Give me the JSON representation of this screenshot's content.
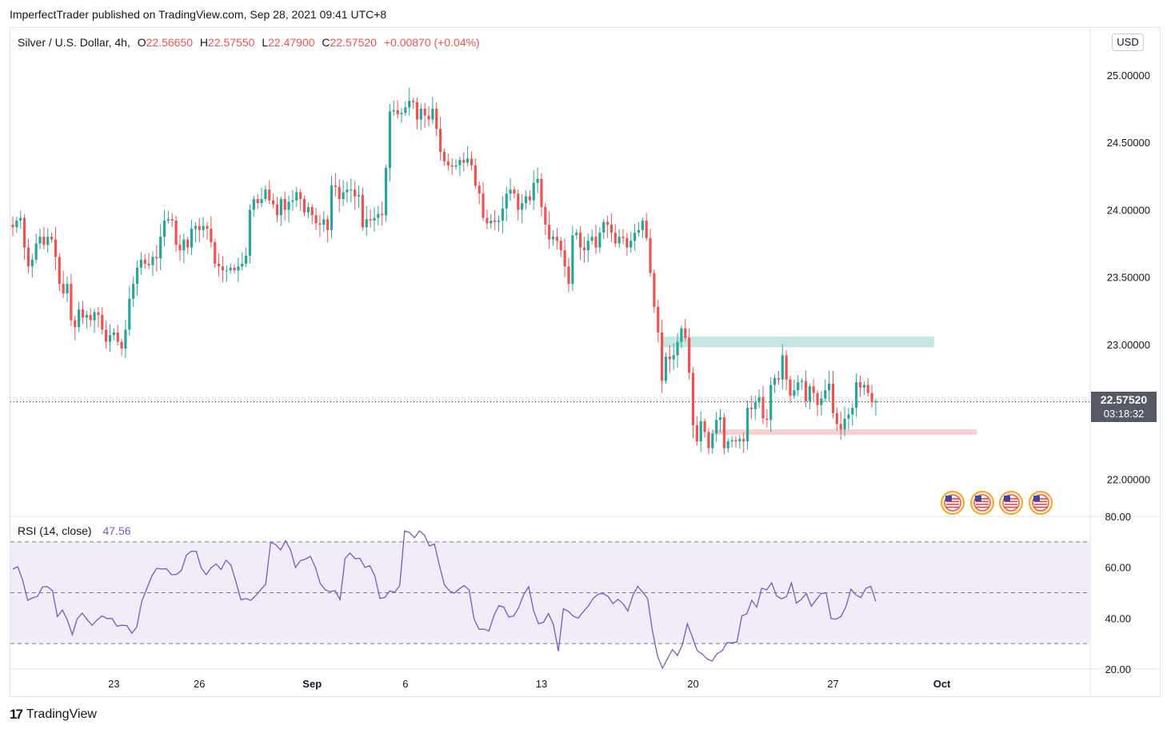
{
  "header": {
    "publish_line": "ImperfectTrader published on TradingView.com, Sep 28, 2021 09:41 UTC+8"
  },
  "legend": {
    "symbol": "Silver / U.S. Dollar, 4h,",
    "o_label": "O",
    "o_value": "22.56650",
    "h_label": "H",
    "h_value": "22.57550",
    "l_label": "L",
    "l_value": "22.47900",
    "c_label": "C",
    "c_value": "22.57520",
    "change": "+0.00870 (+0.04%)"
  },
  "price_axis": {
    "currency_button": "USD",
    "last_price": "22.57520",
    "countdown": "03:18:32"
  },
  "rsi": {
    "label": "RSI (14, close)",
    "value": "47.56"
  },
  "footer": {
    "logo_glyph": "17",
    "brand": "TradingView"
  },
  "colors": {
    "up": "#26a69a",
    "down": "#ef5350",
    "rsi_line": "#7e57c2",
    "rsi_band": "#ede7f6",
    "resistance_zone": "#b2dfdb",
    "support_zone": "#f8c8c8"
  },
  "icons": [
    "us-flag-event-icon",
    "us-flag-event-icon",
    "us-flag-event-icon",
    "us-flag-event-icon"
  ],
  "chart_data": {
    "type": "candlestick",
    "price_axis_ticks": [
      "25.00000",
      "24.50000",
      "24.00000",
      "23.50000",
      "23.00000",
      "22.00000"
    ],
    "price_axis_values": [
      25.0,
      24.5,
      24.0,
      23.5,
      23.0,
      22.0
    ],
    "ylim": [
      21.73,
      25.35
    ],
    "x_tick_labels": [
      "23",
      "26",
      "Sep",
      "6",
      "13",
      "20",
      "27",
      "Oct"
    ],
    "x_tick_bar_index": [
      26,
      48,
      77,
      101,
      136,
      175,
      211,
      239
    ],
    "last_price": 22.5752,
    "resistance_zone": {
      "from": 22.98,
      "to": 23.06,
      "start_bar": 167,
      "end_bar": 237
    },
    "support_zone": {
      "from": 22.33,
      "to": 22.37,
      "start_bar": 180,
      "end_bar": 248
    },
    "closes": [
      23.87,
      23.92,
      23.94,
      23.72,
      23.58,
      23.63,
      23.75,
      23.8,
      23.74,
      23.8,
      23.78,
      23.65,
      23.45,
      23.38,
      23.45,
      23.18,
      23.13,
      23.26,
      23.2,
      23.22,
      23.18,
      23.24,
      23.22,
      23.11,
      23.02,
      23.07,
      23.09,
      23.02,
      22.97,
      23.11,
      23.34,
      23.45,
      23.57,
      23.63,
      23.6,
      23.59,
      23.65,
      23.64,
      23.8,
      23.92,
      23.93,
      23.92,
      23.74,
      23.7,
      23.78,
      23.72,
      23.86,
      23.88,
      23.85,
      23.88,
      23.86,
      23.76,
      23.6,
      23.58,
      23.55,
      23.55,
      23.57,
      23.55,
      23.58,
      23.6,
      23.66,
      24.0,
      24.08,
      24.05,
      24.08,
      24.15,
      24.07,
      24.04,
      23.96,
      24.08,
      24.0,
      24.06,
      24.07,
      24.13,
      24.08,
      23.98,
      24.02,
      23.96,
      23.9,
      23.89,
      23.93,
      23.85,
      24.18,
      24.17,
      24.08,
      24.13,
      24.15,
      24.15,
      24.1,
      24.11,
      23.87,
      23.93,
      23.92,
      23.94,
      23.97,
      23.96,
      24.31,
      24.73,
      24.74,
      24.71,
      24.72,
      24.76,
      24.81,
      24.8,
      24.67,
      24.75,
      24.7,
      24.67,
      24.75,
      24.6,
      24.43,
      24.36,
      24.33,
      24.32,
      24.33,
      24.37,
      24.35,
      24.38,
      24.33,
      24.18,
      24.12,
      23.94,
      23.9,
      23.92,
      23.91,
      23.92,
      24.01,
      24.12,
      24.15,
      24.12,
      24.0,
      24.05,
      24.1,
      24.07,
      24.2,
      24.23,
      24.02,
      23.89,
      23.78,
      23.8,
      23.77,
      23.7,
      23.58,
      23.45,
      23.81,
      23.83,
      23.72,
      23.7,
      23.77,
      23.8,
      23.72,
      23.83,
      23.91,
      23.89,
      23.83,
      23.75,
      23.8,
      23.79,
      23.72,
      23.77,
      23.83,
      23.85,
      23.92,
      23.79,
      23.53,
      23.28,
      23.09,
      22.73,
      22.91,
      22.89,
      22.92,
      23.02,
      23.12,
      23.05,
      22.79,
      22.4,
      22.28,
      22.43,
      22.35,
      22.23,
      22.34,
      22.44,
      22.46,
      22.23,
      22.28,
      22.29,
      22.28,
      22.3,
      22.28,
      22.53,
      22.52,
      22.57,
      22.61,
      22.45,
      22.44,
      22.7,
      22.75,
      22.74,
      22.92,
      22.74,
      22.62,
      22.66,
      22.72,
      22.73,
      22.58,
      22.69,
      22.64,
      22.55,
      22.6,
      22.66,
      22.71,
      22.49,
      22.41,
      22.37,
      22.45,
      22.48,
      22.53,
      22.72,
      22.68,
      22.7,
      22.64,
      22.57,
      22.58
    ],
    "rsi": {
      "ylim": [
        20,
        80
      ],
      "levels": [
        70,
        50,
        30
      ],
      "tick_labels": [
        "80.00",
        "60.00",
        "40.00",
        "20.00"
      ],
      "tick_values": [
        80,
        60,
        40,
        20
      ],
      "values": [
        59.3,
        60.2,
        54.8,
        47.0,
        48.0,
        48.6,
        52.3,
        52.4,
        50.8,
        40.6,
        43.2,
        39.3,
        33.5,
        39.8,
        42.0,
        39.4,
        37.2,
        39.3,
        40.9,
        39.9,
        39.9,
        36.8,
        37.2,
        37.1,
        34.1,
        36.5,
        46.6,
        51.5,
        56.4,
        59.6,
        59.3,
        59.4,
        57.1,
        57.2,
        58.7,
        64.8,
        66.3,
        66.2,
        59.7,
        57.1,
        59.8,
        61.3,
        59.1,
        62.8,
        60.8,
        54.3,
        47.2,
        47.7,
        47.0,
        48.9,
        51.2,
        53.4,
        69.9,
        68.9,
        66.8,
        70.4,
        66.9,
        59.9,
        62.6,
        63.2,
        64.3,
        60.1,
        53.6,
        51.2,
        50.4,
        50.8,
        47.3,
        63.5,
        65.6,
        63.4,
        63.5,
        60.0,
        60.6,
        56.5,
        47.8,
        48.1,
        50.7,
        50.2,
        52.8,
        74.3,
        73.6,
        71.6,
        74.3,
        72.6,
        68.3,
        69.2,
        60.8,
        53.2,
        50.8,
        49.8,
        51.5,
        52.8,
        51.1,
        39.7,
        35.6,
        35.7,
        35.0,
        41.0,
        44.9,
        44.3,
        40.4,
        40.9,
        44.2,
        49.2,
        52.4,
        43.0,
        37.8,
        38.4,
        41.8,
        37.5,
        27.0,
        43.7,
        42.7,
        40.8,
        40.0,
        42.5,
        44.7,
        47.7,
        49.4,
        49.7,
        48.6,
        45.7,
        47.4,
        45.8,
        42.8,
        48.8,
        52.5,
        50.2,
        47.7,
        34.5,
        25.1,
        20.3,
        24.1,
        27.7,
        25.3,
        29.6,
        37.8,
        32.7,
        27.2,
        25.9,
        24.0,
        23.1,
        26.1,
        27.1,
        30.3,
        30.3,
        30.6,
        40.9,
        41.7,
        47.0,
        44.3,
        51.8,
        51.1,
        53.9,
        48.7,
        47.6,
        48.5,
        53.9,
        45.9,
        47.4,
        49.7,
        44.7,
        47.3,
        49.7,
        49.9,
        39.8,
        39.6,
        40.7,
        44.6,
        51.4,
        49.1,
        48.1,
        51.7,
        52.5,
        46.5
      ],
      "values_note_bar_offset": 0
    }
  }
}
